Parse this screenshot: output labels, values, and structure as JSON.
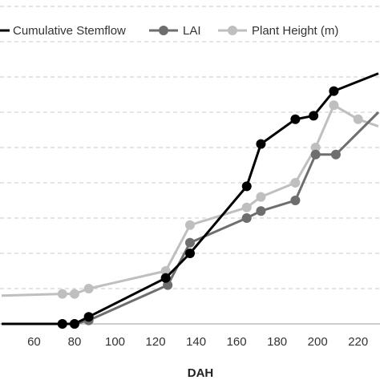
{
  "chart_data": {
    "type": "line",
    "xlabel": "DAH",
    "ylabel": "",
    "xlim": [
      44,
      230
    ],
    "ylim": [
      0,
      10
    ],
    "x_ticks": [
      60,
      80,
      100,
      120,
      140,
      160,
      180,
      200,
      220
    ],
    "y_gridlines": [
      1,
      2,
      3,
      4,
      5,
      6,
      7,
      8,
      9
    ],
    "grid": "horizontal dashed",
    "legend_position": "top",
    "series": [
      {
        "name": "Cumulative Stemflow",
        "color": "#000000",
        "x": [
          44,
          74,
          80,
          87,
          125,
          137,
          165,
          172,
          189,
          198,
          208,
          230
        ],
        "y": [
          0.0,
          0.0,
          0.0,
          0.2,
          1.3,
          2.0,
          3.9,
          5.1,
          5.8,
          5.9,
          6.6,
          7.1
        ]
      },
      {
        "name": "LAI",
        "color": "#6e6e6e",
        "x": [
          44,
          74,
          80,
          87,
          126,
          137,
          165,
          172,
          189,
          199,
          209,
          230
        ],
        "y": [
          0.0,
          0.0,
          0.0,
          0.1,
          1.1,
          2.3,
          3.0,
          3.2,
          3.5,
          4.8,
          4.8,
          6.0
        ]
      },
      {
        "name": "Plant Height (m)",
        "color": "#bfbfbf",
        "x": [
          44,
          74,
          80,
          87,
          125,
          137,
          165,
          172,
          189,
          199,
          208,
          220,
          230
        ],
        "y": [
          0.8,
          0.85,
          0.85,
          1.0,
          1.5,
          2.8,
          3.3,
          3.6,
          4.0,
          5.0,
          6.2,
          5.8,
          5.6
        ]
      }
    ]
  }
}
